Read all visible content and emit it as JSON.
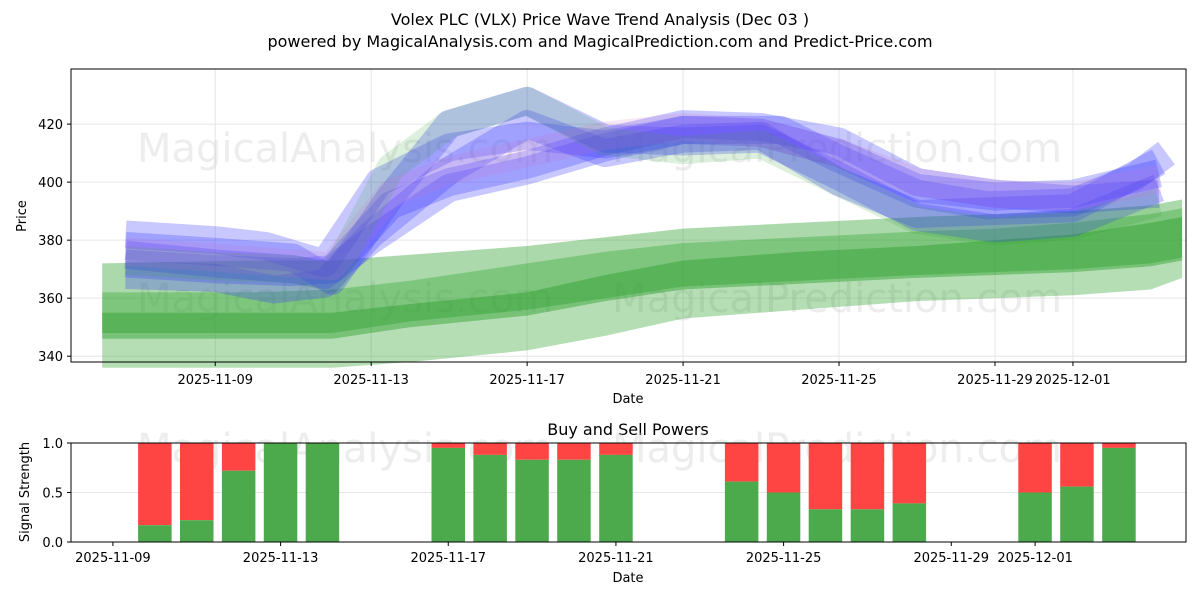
{
  "header": {
    "title": "Volex PLC (VLX) Price Wave Trend Analysis (Dec 03 )",
    "subtitle": "powered by MagicalAnalysis.com and MagicalPrediction.com and Predict-Price.com"
  },
  "watermarks": [
    "MagicalAnalysis.com",
    "MagicalPrediction.com"
  ],
  "colors": {
    "green": "#2ca02c",
    "blue": "#3a3aff",
    "red": "#ff4444",
    "bar_green": "#4caa4c",
    "grid": "#e6e6e6"
  },
  "chart_data": [
    {
      "type": "area",
      "title": "",
      "xlabel": "Date",
      "ylabel": "Price",
      "ylim": [
        338,
        439
      ],
      "xlim_days": [
        -3.7,
        24.9
      ],
      "x_ticks": [
        {
          "day": 0,
          "label": "2025-11-09"
        },
        {
          "day": 4,
          "label": "2025-11-13"
        },
        {
          "day": 8,
          "label": "2025-11-17"
        },
        {
          "day": 12,
          "label": "2025-11-21"
        },
        {
          "day": 16,
          "label": "2025-11-25"
        },
        {
          "day": 20,
          "label": "2025-11-29"
        },
        {
          "day": 22,
          "label": "2025-12-01"
        }
      ],
      "y_ticks": [
        340,
        360,
        380,
        400,
        420
      ],
      "green_bands": [
        {
          "name": "outer",
          "x": [
            -2.9,
            1,
            3,
            5,
            8,
            10,
            12,
            15,
            18,
            20,
            22,
            24,
            24.8
          ],
          "upper": [
            362,
            362,
            363,
            366,
            372,
            376,
            379,
            381,
            383,
            384,
            386,
            389,
            391
          ],
          "lower": [
            336,
            336,
            336,
            338,
            342,
            347,
            353,
            356,
            359,
            360,
            361,
            363,
            367
          ]
        },
        {
          "name": "middle",
          "x": [
            -2.9,
            1,
            3,
            5,
            8,
            10,
            12,
            15,
            18,
            20,
            22,
            24,
            24.8
          ],
          "upper": [
            372,
            373,
            373,
            375,
            378,
            381,
            384,
            386,
            388,
            389,
            390,
            392,
            394
          ],
          "lower": [
            348,
            348,
            348,
            352,
            356,
            360,
            364,
            366,
            368,
            369,
            370,
            372,
            374
          ]
        },
        {
          "name": "core",
          "x": [
            -2.9,
            1,
            3,
            5,
            8,
            10,
            12,
            15,
            18,
            20,
            22,
            24,
            24.8
          ],
          "upper": [
            355,
            355,
            355,
            358,
            362,
            368,
            373,
            376,
            378,
            380,
            382,
            386,
            388
          ],
          "lower": [
            346,
            346,
            346,
            350,
            354,
            359,
            363,
            365,
            367,
            368,
            369,
            371,
            373
          ]
        }
      ],
      "wave_lines": [
        {
          "color": "blue",
          "x": [
            -2.3,
            0,
            1.3,
            2.8,
            4.2,
            6,
            8,
            10,
            12,
            14.5,
            16,
            18,
            19.8,
            22,
            23.6,
            24.4
          ],
          "y": [
            382,
            380,
            378,
            372,
            400,
            412,
            416,
            413,
            418,
            418,
            408,
            396,
            392,
            393,
            402,
            410
          ]
        },
        {
          "color": "blue",
          "x": [
            -2.3,
            0,
            2,
            2.8,
            4,
            6,
            8,
            10,
            12,
            14,
            16,
            18,
            20,
            22,
            24.2
          ],
          "y": [
            375,
            372,
            370,
            368,
            380,
            398,
            404,
            412,
            418,
            417,
            410,
            398,
            395,
            396,
            403
          ]
        },
        {
          "color": "blue",
          "x": [
            -2.3,
            0,
            1.5,
            2.8,
            4,
            6,
            8,
            10,
            12,
            14,
            16,
            18,
            20,
            22,
            24.2
          ],
          "y": [
            368,
            367,
            363,
            365,
            382,
            404,
            420,
            410,
            415,
            416,
            400,
            389,
            390,
            391,
            407
          ]
        },
        {
          "color": "blue",
          "x": [
            -2.3,
            0,
            2,
            3,
            4.5,
            6,
            8,
            10,
            12,
            14,
            16,
            18,
            20,
            22,
            24.2
          ],
          "y": [
            378,
            376,
            374,
            366,
            395,
            420,
            428,
            415,
            414,
            415,
            402,
            388,
            384,
            386,
            398
          ]
        },
        {
          "color": "blue",
          "x": [
            -2.3,
            0,
            2,
            3,
            4.5,
            6,
            8,
            10,
            12,
            14,
            16,
            18,
            20,
            22,
            24.2
          ],
          "y": [
            372,
            370,
            369,
            370,
            392,
            400,
            406,
            414,
            420,
            419,
            414,
            400,
            396,
            394,
            396
          ]
        },
        {
          "color": "green",
          "x": [
            -2.3,
            0,
            2,
            3,
            4.5,
            6,
            8,
            10,
            12,
            14,
            16,
            18,
            20,
            22,
            24.2
          ],
          "y": [
            373,
            371,
            370,
            367,
            405,
            420,
            428,
            414,
            411,
            413,
            400,
            387,
            383,
            385,
            393
          ]
        },
        {
          "color": "pink",
          "x": [
            -2.3,
            0,
            2,
            3,
            4.5,
            6,
            8,
            10,
            12,
            14,
            16,
            18,
            20,
            22,
            24.2
          ],
          "y": [
            376,
            374,
            372,
            371,
            396,
            404,
            410,
            416,
            419,
            417,
            410,
            400,
            396,
            395,
            401
          ]
        }
      ]
    },
    {
      "type": "bar",
      "title": "Buy and Sell Powers",
      "xlabel": "Date",
      "ylabel": "Signal Strength",
      "ylim": [
        0,
        1
      ],
      "xlim_days": [
        -1.0,
        25.6
      ],
      "y_ticks": [
        {
          "v": 0.0,
          "label": "0.0"
        },
        {
          "v": 0.5,
          "label": "0.5"
        },
        {
          "v": 1.0,
          "label": "1.0"
        }
      ],
      "x_ticks": [
        {
          "day": 0,
          "label": "2025-11-09"
        },
        {
          "day": 4,
          "label": "2025-11-13"
        },
        {
          "day": 8,
          "label": "2025-11-17"
        },
        {
          "day": 12,
          "label": "2025-11-21"
        },
        {
          "day": 16,
          "label": "2025-11-25"
        },
        {
          "day": 20,
          "label": "2025-11-29"
        },
        {
          "day": 22,
          "label": "2025-12-01"
        }
      ],
      "series": [
        {
          "name": "Buy",
          "color": "green"
        },
        {
          "name": "Sell",
          "color": "red"
        }
      ],
      "bars": [
        {
          "day": 1,
          "buy": 0.17
        },
        {
          "day": 2,
          "buy": 0.22
        },
        {
          "day": 3,
          "buy": 0.72
        },
        {
          "day": 4,
          "buy": 1.0
        },
        {
          "day": 5,
          "buy": 1.0
        },
        {
          "day": 8,
          "buy": 0.95
        },
        {
          "day": 9,
          "buy": 0.88
        },
        {
          "day": 10,
          "buy": 0.83
        },
        {
          "day": 11,
          "buy": 0.83
        },
        {
          "day": 12,
          "buy": 0.88
        },
        {
          "day": 15,
          "buy": 0.61
        },
        {
          "day": 16,
          "buy": 0.5
        },
        {
          "day": 17,
          "buy": 0.33
        },
        {
          "day": 18,
          "buy": 0.33
        },
        {
          "day": 19,
          "buy": 0.39
        },
        {
          "day": 22,
          "buy": 0.5
        },
        {
          "day": 23,
          "buy": 0.56
        },
        {
          "day": 24,
          "buy": 0.95
        }
      ]
    }
  ]
}
